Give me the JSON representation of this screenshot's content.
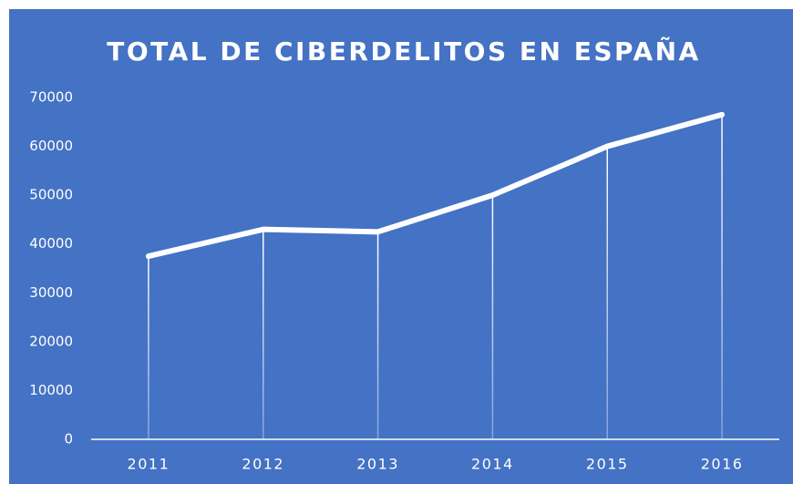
{
  "chart_data": {
    "type": "line",
    "title": "TOTAL DE CIBERDELITOS  EN ESPAÑA",
    "categories": [
      "2011",
      "2012",
      "2013",
      "2014",
      "2015",
      "2016"
    ],
    "values": [
      37500,
      43000,
      42500,
      50000,
      60000,
      66500
    ],
    "color": "#ffffff",
    "background": "#4472c4",
    "ylim": [
      0,
      70000
    ],
    "yticks": [
      0,
      10000,
      20000,
      30000,
      40000,
      50000,
      60000,
      70000
    ],
    "grid": false,
    "drop_lines": true
  }
}
